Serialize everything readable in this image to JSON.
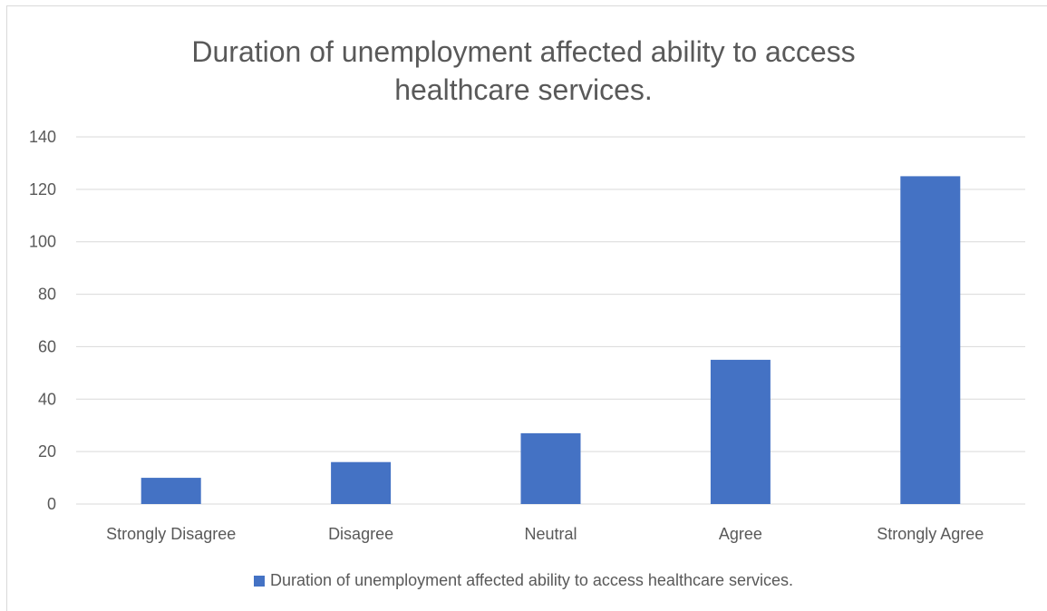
{
  "chart_data": {
    "type": "bar",
    "title_lines": [
      "Duration of unemployment affected ability to access",
      "healthcare services."
    ],
    "categories": [
      "Strongly Disagree",
      "Disagree",
      "Neutral",
      "Agree",
      "Strongly Agree"
    ],
    "series": [
      {
        "name": "Duration of unemployment affected ability to access healthcare services.",
        "values": [
          10,
          16,
          27,
          55,
          125
        ],
        "color": "#4472c4"
      }
    ],
    "ylim": [
      0,
      140
    ],
    "yticks": [
      0,
      20,
      40,
      60,
      80,
      100,
      120,
      140
    ],
    "grid": true,
    "legend_position": "bottom",
    "xlabel": "",
    "ylabel": ""
  }
}
